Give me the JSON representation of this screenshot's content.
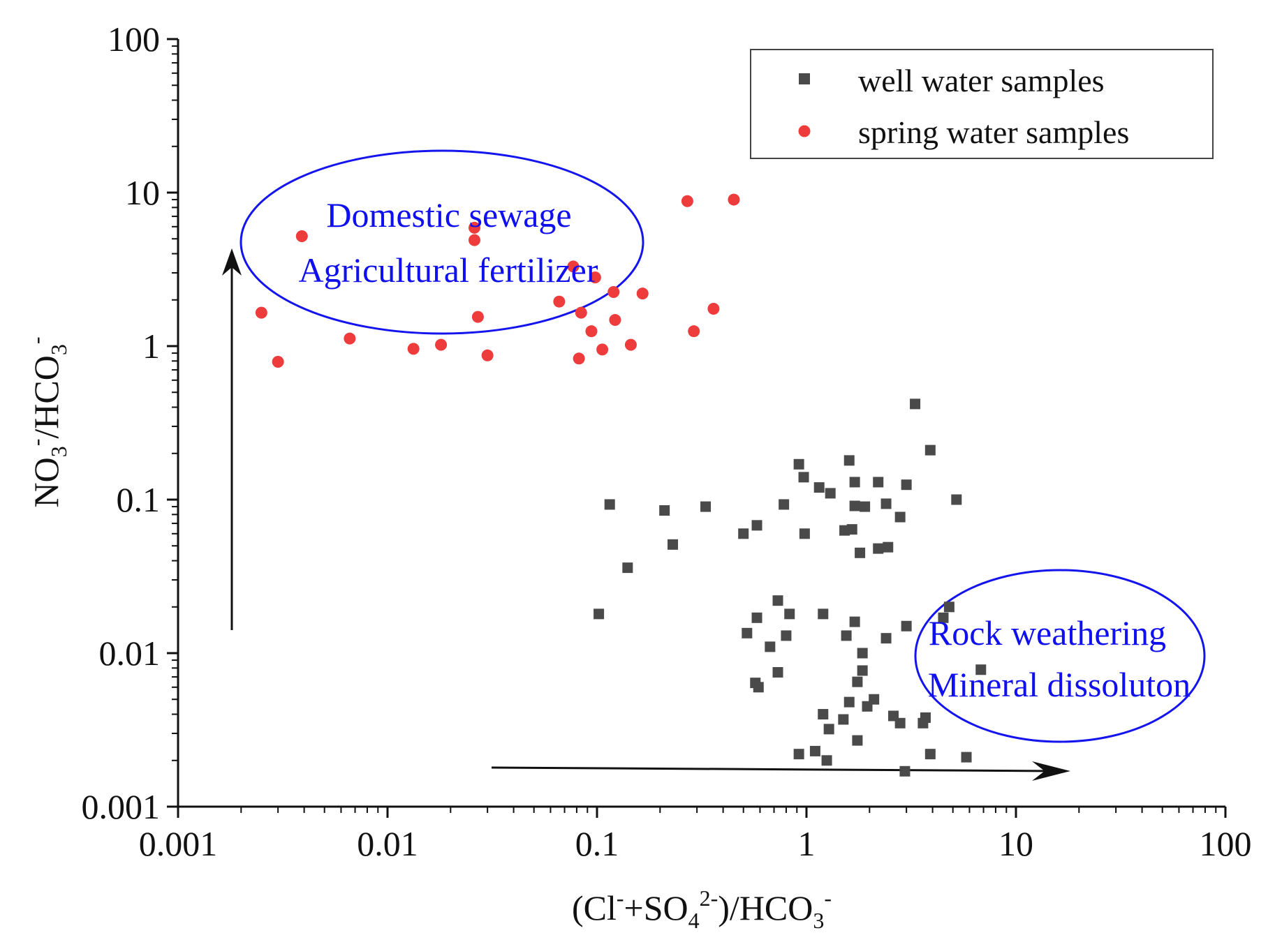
{
  "chart_data": {
    "type": "scatter",
    "title": "",
    "xscale": "log",
    "yscale": "log",
    "xlim": [
      0.001,
      100
    ],
    "ylim": [
      0.001,
      100
    ],
    "xticks": [
      {
        "value": 0.001,
        "label": "0.001"
      },
      {
        "value": 0.01,
        "label": "0.01"
      },
      {
        "value": 0.1,
        "label": "0.1"
      },
      {
        "value": 1,
        "label": "1"
      },
      {
        "value": 10,
        "label": "10"
      },
      {
        "value": 100,
        "label": "100"
      }
    ],
    "yticks": [
      {
        "value": 0.001,
        "label": "0.001"
      },
      {
        "value": 0.01,
        "label": "0.01"
      },
      {
        "value": 0.1,
        "label": "0.1"
      },
      {
        "value": 1,
        "label": "1"
      },
      {
        "value": 10,
        "label": "10"
      },
      {
        "value": 100,
        "label": "100"
      }
    ],
    "xlabel": {
      "parts": [
        {
          "text": "(Cl",
          "style": "normal"
        },
        {
          "text": "-",
          "style": "sup"
        },
        {
          "text": "+SO",
          "style": "normal"
        },
        {
          "text": "4",
          "style": "sub"
        },
        {
          "text": "2-",
          "style": "sup"
        },
        {
          "text": ")/HCO",
          "style": "normal"
        },
        {
          "text": "3",
          "style": "sub"
        },
        {
          "text": "-",
          "style": "sup"
        }
      ]
    },
    "ylabel": {
      "parts": [
        {
          "text": "NO",
          "style": "normal"
        },
        {
          "text": "3",
          "style": "sub"
        },
        {
          "text": "-",
          "style": "sup"
        },
        {
          "text": "/HCO",
          "style": "normal"
        },
        {
          "text": "3",
          "style": "sub"
        },
        {
          "text": "-",
          "style": "sup"
        }
      ]
    },
    "legend": {
      "position": "top-right"
    },
    "series": [
      {
        "name": "well water samples",
        "marker": "square",
        "color": "#4a4a4a",
        "points": [
          {
            "x": 3.3,
            "y": 0.42
          },
          {
            "x": 3.9,
            "y": 0.21
          },
          {
            "x": 1.6,
            "y": 0.18
          },
          {
            "x": 0.92,
            "y": 0.17
          },
          {
            "x": 0.97,
            "y": 0.14
          },
          {
            "x": 1.7,
            "y": 0.13
          },
          {
            "x": 2.2,
            "y": 0.13
          },
          {
            "x": 3.0,
            "y": 0.125
          },
          {
            "x": 1.15,
            "y": 0.12
          },
          {
            "x": 1.3,
            "y": 0.11
          },
          {
            "x": 5.2,
            "y": 0.1
          },
          {
            "x": 0.115,
            "y": 0.093
          },
          {
            "x": 0.33,
            "y": 0.09
          },
          {
            "x": 0.78,
            "y": 0.093
          },
          {
            "x": 1.7,
            "y": 0.091
          },
          {
            "x": 1.9,
            "y": 0.09
          },
          {
            "x": 2.4,
            "y": 0.094
          },
          {
            "x": 0.21,
            "y": 0.085
          },
          {
            "x": 2.8,
            "y": 0.077
          },
          {
            "x": 0.58,
            "y": 0.068
          },
          {
            "x": 1.52,
            "y": 0.063
          },
          {
            "x": 1.65,
            "y": 0.064
          },
          {
            "x": 0.5,
            "y": 0.06
          },
          {
            "x": 0.98,
            "y": 0.06
          },
          {
            "x": 0.23,
            "y": 0.051
          },
          {
            "x": 2.2,
            "y": 0.048
          },
          {
            "x": 2.45,
            "y": 0.049
          },
          {
            "x": 1.8,
            "y": 0.045
          },
          {
            "x": 0.14,
            "y": 0.036
          },
          {
            "x": 0.73,
            "y": 0.022
          },
          {
            "x": 4.8,
            "y": 0.02
          },
          {
            "x": 0.102,
            "y": 0.018
          },
          {
            "x": 0.83,
            "y": 0.018
          },
          {
            "x": 1.2,
            "y": 0.018
          },
          {
            "x": 0.58,
            "y": 0.017
          },
          {
            "x": 1.7,
            "y": 0.016
          },
          {
            "x": 4.5,
            "y": 0.017
          },
          {
            "x": 3.0,
            "y": 0.015
          },
          {
            "x": 0.52,
            "y": 0.0135
          },
          {
            "x": 0.8,
            "y": 0.013
          },
          {
            "x": 1.55,
            "y": 0.013
          },
          {
            "x": 2.4,
            "y": 0.0125
          },
          {
            "x": 0.67,
            "y": 0.011
          },
          {
            "x": 1.85,
            "y": 0.01
          },
          {
            "x": 6.8,
            "y": 0.0078
          },
          {
            "x": 0.73,
            "y": 0.0075
          },
          {
            "x": 1.85,
            "y": 0.0077
          },
          {
            "x": 0.57,
            "y": 0.0064
          },
          {
            "x": 1.75,
            "y": 0.0065
          },
          {
            "x": 0.59,
            "y": 0.006
          },
          {
            "x": 2.1,
            "y": 0.005
          },
          {
            "x": 1.6,
            "y": 0.0048
          },
          {
            "x": 1.95,
            "y": 0.0045
          },
          {
            "x": 1.2,
            "y": 0.004
          },
          {
            "x": 2.6,
            "y": 0.0039
          },
          {
            "x": 3.7,
            "y": 0.0038
          },
          {
            "x": 1.5,
            "y": 0.0037
          },
          {
            "x": 2.8,
            "y": 0.0035
          },
          {
            "x": 3.6,
            "y": 0.0035
          },
          {
            "x": 1.28,
            "y": 0.0032
          },
          {
            "x": 1.75,
            "y": 0.0027
          },
          {
            "x": 0.92,
            "y": 0.0022
          },
          {
            "x": 1.1,
            "y": 0.0023
          },
          {
            "x": 3.9,
            "y": 0.0022
          },
          {
            "x": 1.25,
            "y": 0.002
          },
          {
            "x": 5.8,
            "y": 0.0021
          },
          {
            "x": 2.95,
            "y": 0.0017
          }
        ]
      },
      {
        "name": "spring water samples",
        "marker": "circle",
        "color": "#ee3b3b",
        "points": [
          {
            "x": 0.45,
            "y": 9.0
          },
          {
            "x": 0.27,
            "y": 8.8
          },
          {
            "x": 0.026,
            "y": 5.9
          },
          {
            "x": 0.0039,
            "y": 5.2
          },
          {
            "x": 0.026,
            "y": 4.9
          },
          {
            "x": 0.077,
            "y": 3.3
          },
          {
            "x": 0.098,
            "y": 2.8
          },
          {
            "x": 0.12,
            "y": 2.25
          },
          {
            "x": 0.165,
            "y": 2.2
          },
          {
            "x": 0.066,
            "y": 1.95
          },
          {
            "x": 0.36,
            "y": 1.75
          },
          {
            "x": 0.0025,
            "y": 1.65
          },
          {
            "x": 0.084,
            "y": 1.65
          },
          {
            "x": 0.027,
            "y": 1.55
          },
          {
            "x": 0.122,
            "y": 1.48
          },
          {
            "x": 0.094,
            "y": 1.25
          },
          {
            "x": 0.29,
            "y": 1.25
          },
          {
            "x": 0.0066,
            "y": 1.12
          },
          {
            "x": 0.018,
            "y": 1.02
          },
          {
            "x": 0.145,
            "y": 1.02
          },
          {
            "x": 0.0133,
            "y": 0.96
          },
          {
            "x": 0.106,
            "y": 0.95
          },
          {
            "x": 0.03,
            "y": 0.87
          },
          {
            "x": 0.082,
            "y": 0.83
          },
          {
            "x": 0.003,
            "y": 0.79
          }
        ]
      }
    ],
    "annotations": [
      {
        "kind": "ellipse-label",
        "lines": [
          "Domestic sewage",
          "Agricultural fertilizer"
        ],
        "color": "#1414ee"
      },
      {
        "kind": "ellipse-label",
        "lines": [
          "Rock weathering",
          "Mineral dissoluton"
        ],
        "color": "#1414ee"
      },
      {
        "kind": "arrow",
        "direction": "up"
      },
      {
        "kind": "arrow",
        "direction": "right"
      }
    ]
  }
}
